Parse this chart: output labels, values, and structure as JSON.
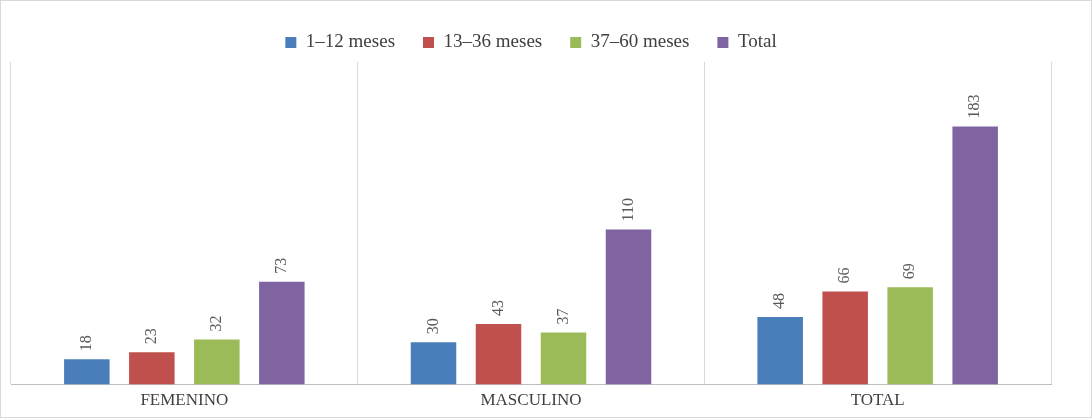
{
  "chart_data": {
    "type": "bar",
    "categories": [
      "FEMENINO",
      "MASCULINO",
      "TOTAL"
    ],
    "series": [
      {
        "name": "1–12 meses",
        "color": "#4a7ebb",
        "values": [
          18,
          30,
          48
        ]
      },
      {
        "name": "13–36 meses",
        "color": "#c0504d",
        "values": [
          23,
          43,
          66
        ]
      },
      {
        "name": "37–60 meses",
        "color": "#9bbb59",
        "values": [
          32,
          37,
          69
        ]
      },
      {
        "name": "Total",
        "color": "#8064a2",
        "values": [
          73,
          110,
          183
        ]
      }
    ],
    "data_labels": true,
    "grid": "x",
    "legend": "top",
    "tick_labels": "x"
  }
}
